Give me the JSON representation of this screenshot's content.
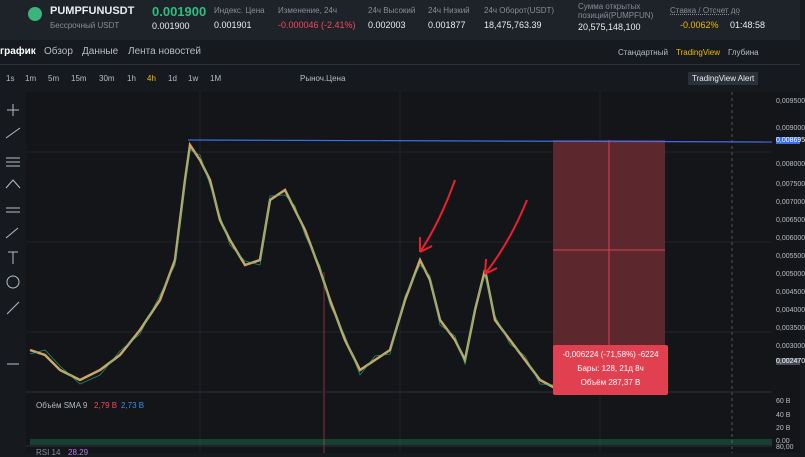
{
  "header": {
    "symbol": "PUMPFUNUSDT",
    "contract": "Бессрочный USDT",
    "last_price": "0.001900",
    "mark_price": "0.001900",
    "stats": [
      {
        "label": "Индекс. Цена",
        "value": "0.001901"
      },
      {
        "label": "Изменение, 24ч",
        "value": "-0.000046 (-2.41%)"
      },
      {
        "label": "24ч Высокий",
        "value": "0.002003"
      },
      {
        "label": "24ч Низкий",
        "value": "0.001877"
      },
      {
        "label": "24ч Оборот(USDT)",
        "value": "18,475,763.39"
      },
      {
        "label": "Сумма открытых позиций(PUMPFUN)",
        "value": "20,575,148,100"
      }
    ],
    "funding": {
      "label": "Ставка / Отсчет до",
      "rate": "-0.0062%",
      "countdown": "01:48:58"
    }
  },
  "tabs": [
    "график",
    "Обзор",
    "Данные",
    "Лента новостей"
  ],
  "views": [
    "Стандартный",
    "TradingView",
    "Глубина"
  ],
  "intervals": [
    "1s",
    "1m",
    "5m",
    "15m",
    "30m",
    "1h",
    "4h",
    "1d",
    "1w",
    "1M"
  ],
  "order_type": "Рыноч.Цена",
  "alert": "TradingView Alert",
  "price_axis": [
    "0,009500",
    "0,009000",
    "0,008695",
    "0,008000",
    "0,007500",
    "0,007000",
    "0,006500",
    "0,006000",
    "0,005500",
    "0,005000",
    "0,004500",
    "0,004000",
    "0,003500",
    "0,003000",
    "0,002470"
  ],
  "volume": {
    "label": "Объём SMA 9",
    "value_1": "2,79 B",
    "value_2": "2,73 B",
    "axis": [
      "60 B",
      "40 B",
      "20 B",
      "0.00"
    ]
  },
  "indicator": {
    "label": "RSI 14",
    "value": "28.29",
    "axis": "80,00"
  },
  "measure": {
    "change": "-0,006224 (-71,58%) -6224",
    "bars": "Бары: 128, 21д 8ч",
    "volume": "Объём 287,37 B"
  }
}
